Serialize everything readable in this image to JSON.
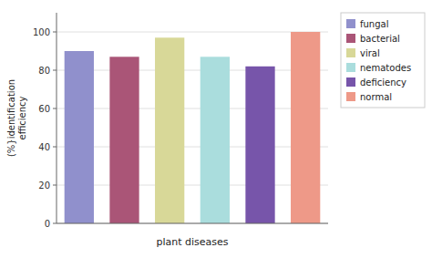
{
  "chart_data": {
    "type": "bar",
    "categories": [
      "fungal",
      "bacterial",
      "viral",
      "nematodes",
      "deficiency",
      "normal"
    ],
    "values": [
      90,
      87,
      97,
      87,
      82,
      100
    ],
    "colors": [
      "#9090cc",
      "#aa5577",
      "#d8d898",
      "#aadddd",
      "#7755aa",
      "#ee9988"
    ],
    "xlabel": "plant diseases",
    "ylabel": "(%}identification\nefficiency",
    "ylim": [
      0,
      110
    ],
    "yticks": [
      0,
      20,
      40,
      60,
      80,
      100
    ],
    "grid": true,
    "legend": "right",
    "tick_labels": "y"
  }
}
